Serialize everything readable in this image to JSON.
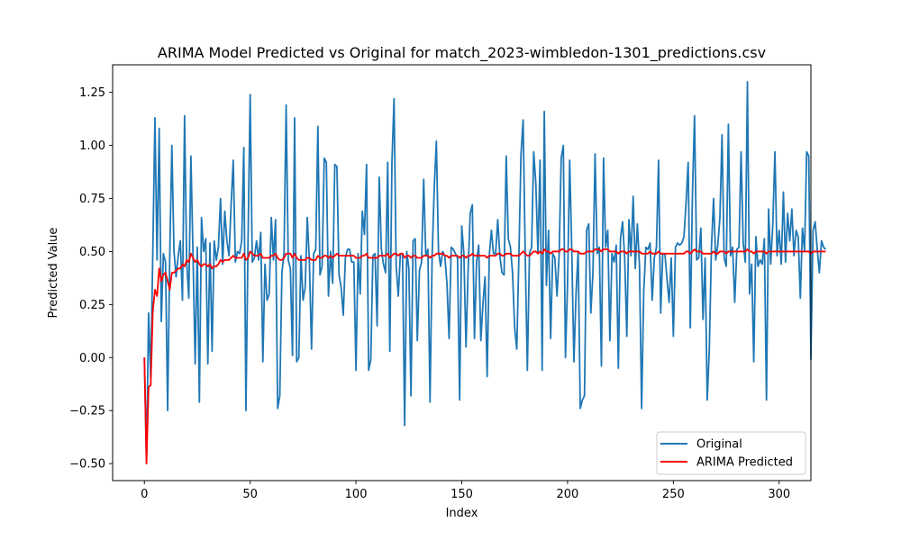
{
  "chart_data": {
    "type": "line",
    "title": "ARIMA Model Predicted vs Original for match_2023-wimbledon-1301_predictions.csv",
    "xlabel": "Index",
    "ylabel": "Predicted Value",
    "xlim": [
      -15,
      315
    ],
    "ylim": [
      -0.58,
      1.38
    ],
    "x_ticks": [
      0,
      50,
      100,
      150,
      200,
      250,
      300
    ],
    "y_ticks": [
      -0.5,
      -0.25,
      0.0,
      0.25,
      0.5,
      0.75,
      1.0,
      1.25
    ],
    "y_tick_labels": [
      "−0.50",
      "−0.25",
      "0.00",
      "0.25",
      "0.50",
      "0.75",
      "1.00",
      "1.25"
    ],
    "x_tick_labels": [
      "0",
      "50",
      "100",
      "150",
      "200",
      "250",
      "300"
    ],
    "grid": false,
    "legend_position": "bottom-right",
    "series": [
      {
        "name": "Original",
        "color": "#1f77b4",
        "x_start": 0,
        "values": [
          0.0,
          -0.5,
          0.21,
          -0.1,
          0.5,
          1.13,
          0.46,
          1.08,
          0.17,
          0.49,
          0.45,
          -0.25,
          0.48,
          1.0,
          0.5,
          0.38,
          0.48,
          0.55,
          0.27,
          1.14,
          0.45,
          0.28,
          0.95,
          0.48,
          -0.03,
          0.52,
          -0.21,
          0.66,
          0.5,
          0.56,
          -0.03,
          0.54,
          0.03,
          0.55,
          0.46,
          0.52,
          0.75,
          0.44,
          0.69,
          0.55,
          0.48,
          0.72,
          0.93,
          0.45,
          0.5,
          0.49,
          0.55,
          0.99,
          -0.25,
          0.55,
          1.24,
          0.45,
          0.47,
          0.55,
          0.46,
          0.59,
          -0.02,
          0.44,
          0.27,
          0.3,
          0.66,
          0.46,
          0.65,
          -0.24,
          -0.18,
          0.4,
          0.49,
          1.19,
          0.46,
          0.42,
          0.01,
          1.13,
          -0.02,
          0.0,
          0.48,
          0.27,
          0.33,
          0.66,
          0.45,
          0.04,
          0.49,
          0.51,
          1.09,
          0.39,
          0.43,
          0.94,
          0.92,
          0.29,
          0.5,
          0.35,
          0.91,
          0.9,
          0.39,
          0.33,
          0.2,
          0.47,
          0.51,
          0.51,
          0.45,
          0.45,
          -0.06,
          0.49,
          0.3,
          0.69,
          0.58,
          0.91,
          -0.06,
          -0.01,
          0.48,
          0.49,
          0.15,
          0.85,
          0.51,
          0.44,
          0.4,
          0.92,
          0.03,
          0.92,
          1.22,
          0.43,
          0.29,
          0.49,
          0.49,
          -0.32,
          0.5,
          0.42,
          -0.18,
          0.55,
          0.56,
          0.08,
          0.41,
          0.45,
          0.84,
          0.48,
          0.51,
          -0.21,
          0.48,
          0.8,
          1.02,
          0.5,
          0.43,
          0.5,
          0.48,
          0.35,
          0.09,
          0.52,
          0.51,
          0.49,
          0.47,
          -0.2,
          0.62,
          0.49,
          0.05,
          0.41,
          0.68,
          0.72,
          0.09,
          0.45,
          0.53,
          0.08,
          0.25,
          0.38,
          -0.09,
          0.48,
          0.6,
          0.49,
          0.49,
          0.65,
          0.48,
          0.4,
          0.39,
          0.95,
          0.56,
          0.52,
          0.4,
          0.14,
          0.04,
          0.48,
          0.96,
          1.12,
          0.48,
          -0.06,
          0.49,
          0.52,
          0.97,
          0.82,
          0.49,
          0.93,
          -0.06,
          1.16,
          0.34,
          0.6,
          0.09,
          0.49,
          0.47,
          0.29,
          0.48,
          0.94,
          1.0,
          0.0,
          0.35,
          0.93,
          0.5,
          -0.02,
          0.3,
          0.5,
          -0.24,
          -0.2,
          -0.18,
          0.6,
          0.63,
          0.21,
          0.4,
          0.96,
          0.49,
          0.52,
          -0.04,
          0.94,
          0.52,
          0.6,
          0.08,
          0.49,
          0.45,
          0.53,
          -0.05,
          0.56,
          0.64,
          0.47,
          0.1,
          0.65,
          0.48,
          0.76,
          0.42,
          0.63,
          0.43,
          -0.24,
          0.31,
          0.52,
          0.51,
          0.54,
          0.27,
          0.47,
          0.52,
          0.93,
          0.21,
          0.49,
          0.49,
          0.37,
          0.26,
          0.47,
          0.1,
          0.52,
          0.54,
          0.53,
          0.54,
          0.57,
          0.73,
          0.92,
          0.14,
          0.76,
          1.14,
          0.46,
          0.47,
          0.61,
          0.18,
          0.47,
          -0.2,
          0.04,
          0.52,
          0.75,
          0.46,
          0.53,
          0.66,
          1.05,
          0.47,
          0.43,
          1.1,
          0.48,
          0.52,
          0.26,
          0.51,
          0.52,
          0.97,
          0.54,
          0.45,
          1.3,
          0.3,
          0.44,
          -0.02,
          0.57,
          0.43,
          0.46,
          0.44,
          0.56,
          -0.2,
          0.7,
          0.44,
          0.63,
          0.97,
          0.48,
          0.6,
          0.44,
          0.78,
          0.45,
          0.68,
          0.55,
          0.7,
          0.48,
          0.6,
          0.57,
          0.28,
          0.61,
          0.5,
          0.97,
          0.95,
          -0.01,
          0.6,
          0.64,
          0.51,
          0.4,
          0.55,
          0.52,
          0.51
        ]
      },
      {
        "name": "ARIMA Predicted",
        "color": "#ff0000",
        "x_start": 0,
        "values": [
          0.0,
          -0.5,
          -0.14,
          -0.13,
          0.22,
          0.32,
          0.29,
          0.42,
          0.36,
          0.39,
          0.4,
          0.36,
          0.32,
          0.4,
          0.4,
          0.41,
          0.42,
          0.42,
          0.44,
          0.43,
          0.46,
          0.45,
          0.49,
          0.47,
          0.45,
          0.46,
          0.44,
          0.43,
          0.44,
          0.44,
          0.43,
          0.44,
          0.42,
          0.43,
          0.43,
          0.44,
          0.46,
          0.45,
          0.46,
          0.46,
          0.46,
          0.47,
          0.48,
          0.47,
          0.47,
          0.47,
          0.47,
          0.49,
          0.46,
          0.47,
          0.5,
          0.49,
          0.48,
          0.48,
          0.48,
          0.49,
          0.47,
          0.47,
          0.47,
          0.47,
          0.48,
          0.48,
          0.49,
          0.47,
          0.46,
          0.46,
          0.47,
          0.49,
          0.49,
          0.49,
          0.47,
          0.49,
          0.47,
          0.46,
          0.46,
          0.46,
          0.46,
          0.47,
          0.47,
          0.46,
          0.46,
          0.46,
          0.48,
          0.47,
          0.47,
          0.48,
          0.48,
          0.47,
          0.48,
          0.47,
          0.48,
          0.49,
          0.48,
          0.48,
          0.48,
          0.48,
          0.48,
          0.48,
          0.48,
          0.48,
          0.47,
          0.47,
          0.47,
          0.48,
          0.48,
          0.49,
          0.47,
          0.47,
          0.47,
          0.47,
          0.47,
          0.48,
          0.48,
          0.48,
          0.48,
          0.49,
          0.47,
          0.48,
          0.49,
          0.49,
          0.48,
          0.49,
          0.49,
          0.47,
          0.48,
          0.48,
          0.47,
          0.48,
          0.48,
          0.47,
          0.47,
          0.47,
          0.48,
          0.48,
          0.48,
          0.47,
          0.48,
          0.48,
          0.49,
          0.49,
          0.49,
          0.49,
          0.48,
          0.48,
          0.47,
          0.48,
          0.48,
          0.48,
          0.48,
          0.47,
          0.48,
          0.48,
          0.47,
          0.48,
          0.48,
          0.49,
          0.48,
          0.48,
          0.48,
          0.48,
          0.48,
          0.48,
          0.47,
          0.48,
          0.48,
          0.48,
          0.48,
          0.49,
          0.49,
          0.48,
          0.48,
          0.49,
          0.49,
          0.49,
          0.48,
          0.48,
          0.48,
          0.48,
          0.49,
          0.5,
          0.49,
          0.48,
          0.48,
          0.49,
          0.5,
          0.5,
          0.49,
          0.5,
          0.49,
          0.51,
          0.5,
          0.5,
          0.49,
          0.5,
          0.5,
          0.5,
          0.5,
          0.51,
          0.51,
          0.5,
          0.5,
          0.51,
          0.51,
          0.5,
          0.5,
          0.5,
          0.49,
          0.49,
          0.49,
          0.5,
          0.5,
          0.5,
          0.5,
          0.51,
          0.51,
          0.51,
          0.5,
          0.51,
          0.51,
          0.51,
          0.5,
          0.5,
          0.5,
          0.5,
          0.49,
          0.5,
          0.5,
          0.5,
          0.49,
          0.5,
          0.5,
          0.5,
          0.5,
          0.5,
          0.5,
          0.49,
          0.49,
          0.49,
          0.49,
          0.5,
          0.49,
          0.49,
          0.49,
          0.5,
          0.49,
          0.49,
          0.49,
          0.49,
          0.49,
          0.49,
          0.49,
          0.49,
          0.49,
          0.49,
          0.49,
          0.49,
          0.5,
          0.5,
          0.49,
          0.5,
          0.51,
          0.5,
          0.5,
          0.5,
          0.49,
          0.49,
          0.49,
          0.49,
          0.49,
          0.5,
          0.49,
          0.49,
          0.5,
          0.5,
          0.5,
          0.49,
          0.5,
          0.5,
          0.5,
          0.5,
          0.5,
          0.5,
          0.5,
          0.5,
          0.5,
          0.51,
          0.5,
          0.5,
          0.49,
          0.5,
          0.5,
          0.5,
          0.5,
          0.5,
          0.49,
          0.5,
          0.5,
          0.5,
          0.5,
          0.5,
          0.5,
          0.5,
          0.5,
          0.5,
          0.5,
          0.5,
          0.5,
          0.5,
          0.5,
          0.5,
          0.5,
          0.5,
          0.5,
          0.5,
          0.5,
          0.49,
          0.5,
          0.5,
          0.5,
          0.5,
          0.5,
          0.5,
          0.5
        ]
      }
    ]
  }
}
